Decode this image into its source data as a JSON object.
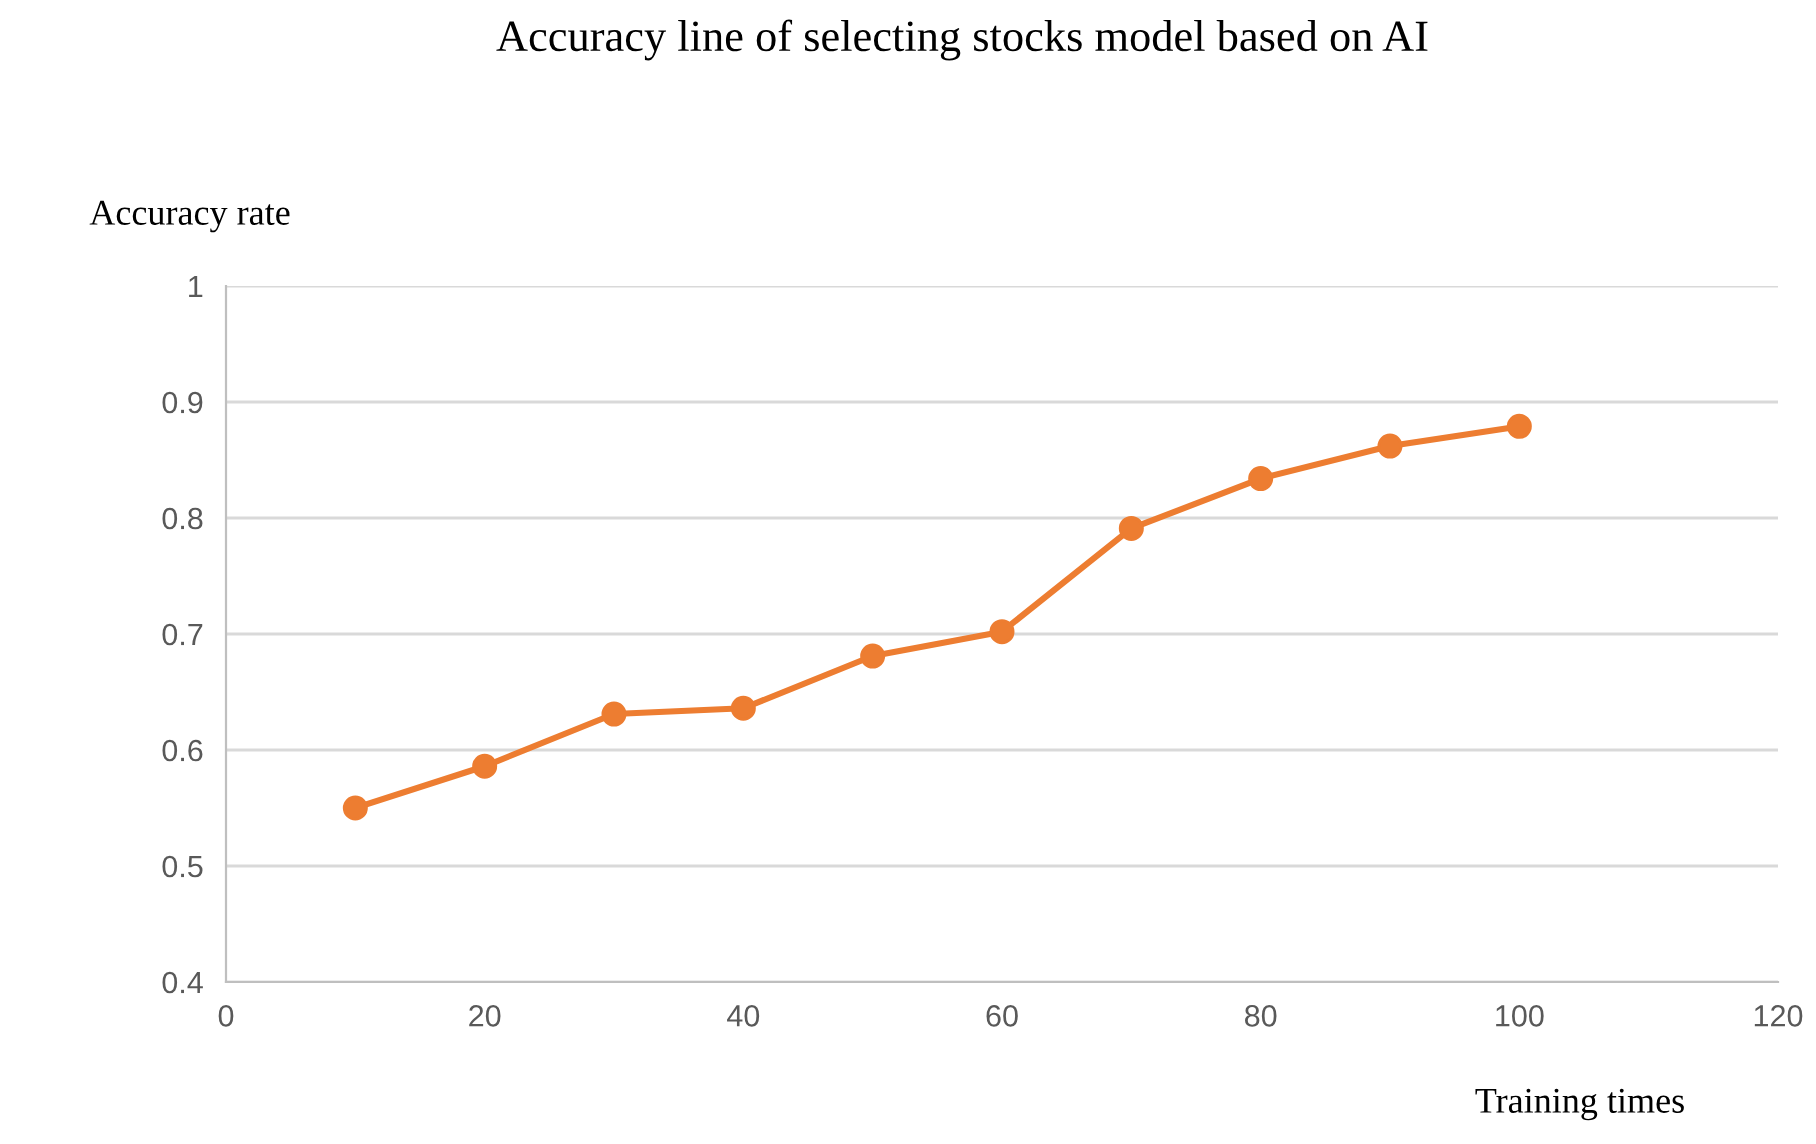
{
  "chart_data": {
    "type": "line",
    "title": "Accuracy line of selecting stocks model based on AI",
    "xlabel": "Training times",
    "ylabel": "Accuracy rate",
    "x": [
      10,
      20,
      30,
      40,
      50,
      60,
      70,
      80,
      90,
      100
    ],
    "series": [
      {
        "color": "#ed7d31",
        "values": [
          0.55,
          0.586,
          0.631,
          0.636,
          0.681,
          0.702,
          0.791,
          0.834,
          0.862,
          0.879
        ]
      }
    ],
    "xlim": [
      0,
      120
    ],
    "xticks": [
      0,
      20,
      40,
      60,
      80,
      100,
      120
    ],
    "ylim": [
      0.4,
      1
    ],
    "yticks": [
      {
        "value": 0.4,
        "label": "0.4"
      },
      {
        "value": 0.5,
        "label": "0.5"
      },
      {
        "value": 0.6,
        "label": "0.6"
      },
      {
        "value": 0.7,
        "label": "0.7"
      },
      {
        "value": 0.8,
        "label": "0.8"
      },
      {
        "value": 0.9,
        "label": "0.9"
      },
      {
        "value": 1,
        "label": "1"
      }
    ],
    "grid": "y",
    "marker": "circle",
    "line_style": "solid",
    "legend": false
  }
}
